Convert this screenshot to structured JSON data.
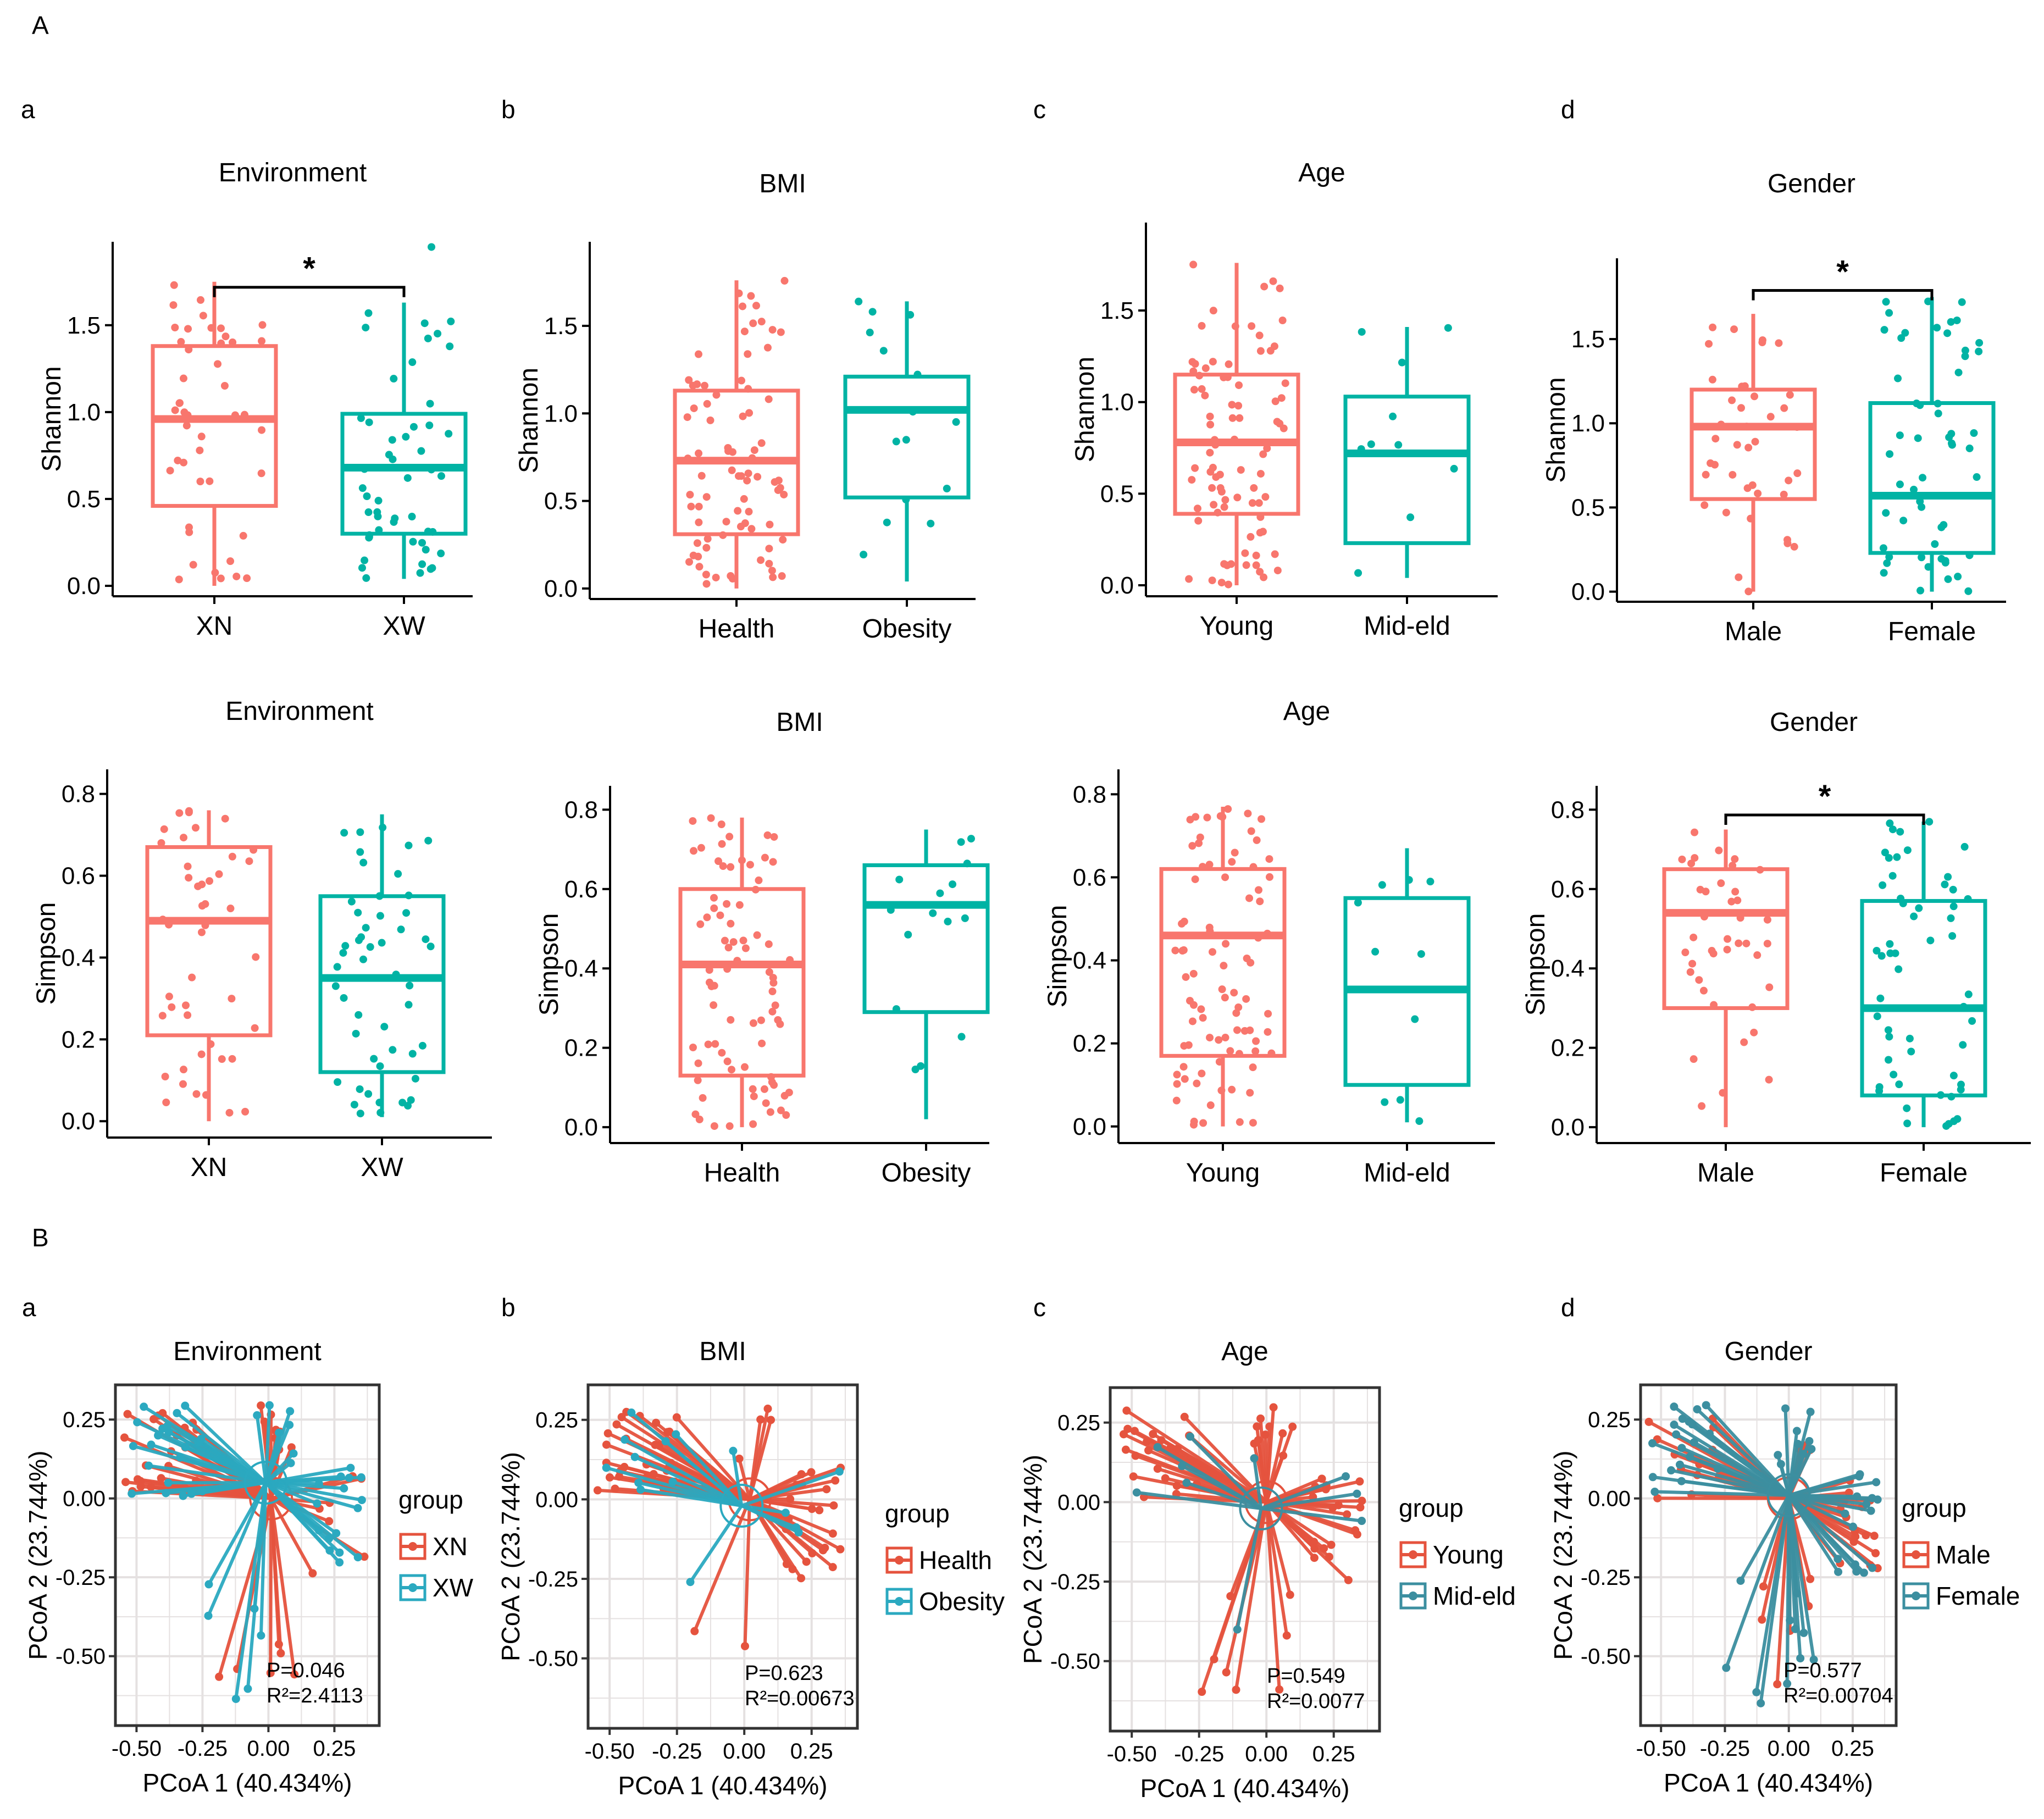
{
  "figure": {
    "panel_A_label": "A",
    "panel_B_label": "B"
  },
  "colors": {
    "salmon": "#F8766D",
    "teal": "#00B3A4",
    "pcoa_red": "#E5533E",
    "pcoa_blue": "#2BA9C0",
    "pcoa_blue2": "#3C8FA0"
  },
  "chart_data": [
    {
      "id": "Aa1",
      "type": "box",
      "panel_label": "a",
      "title": "Environment",
      "ylabel": "Shannon",
      "ylim": [
        -0.06,
        1.98
      ],
      "yticks": [
        0.0,
        0.5,
        1.0,
        1.5
      ],
      "ytick_labels": [
        "0.0",
        "0.5",
        "1.0",
        "1.5"
      ],
      "categories": [
        "XN",
        "XW"
      ],
      "stats": [
        {
          "q1": 0.46,
          "median": 0.96,
          "q3": 1.38,
          "lo": 0.0,
          "hi": 1.75
        },
        {
          "q1": 0.3,
          "median": 0.68,
          "q3": 0.99,
          "lo": 0.04,
          "hi": 1.63
        }
      ],
      "n_points": [
        45,
        50
      ],
      "outliers": [
        [],
        [
          1.95
        ]
      ],
      "significance": "*"
    },
    {
      "id": "Ab1",
      "type": "box",
      "panel_label": "b",
      "title": "BMI",
      "ylabel": "Shannon",
      "ylim": [
        -0.06,
        1.98
      ],
      "yticks": [
        0.0,
        0.5,
        1.0,
        1.5
      ],
      "ytick_labels": [
        "0.0",
        "0.5",
        "1.0",
        "1.5"
      ],
      "categories": [
        "Health",
        "Obesity"
      ],
      "stats": [
        {
          "q1": 0.31,
          "median": 0.73,
          "q3": 1.13,
          "lo": 0.0,
          "hi": 1.76
        },
        {
          "q1": 0.52,
          "median": 1.02,
          "q3": 1.21,
          "lo": 0.04,
          "hi": 1.64
        }
      ],
      "n_points": [
        80,
        15
      ],
      "outliers": [
        [],
        []
      ],
      "significance": ""
    },
    {
      "id": "Ac1",
      "type": "box",
      "panel_label": "c",
      "title": "Age",
      "ylabel": "Shannon",
      "ylim": [
        -0.06,
        1.98
      ],
      "yticks": [
        0.0,
        0.5,
        1.0,
        1.5
      ],
      "ytick_labels": [
        "0.0",
        "0.5",
        "1.0",
        "1.5"
      ],
      "categories": [
        "Young",
        "Mid-eld"
      ],
      "stats": [
        {
          "q1": 0.39,
          "median": 0.78,
          "q3": 1.15,
          "lo": 0.0,
          "hi": 1.76
        },
        {
          "q1": 0.23,
          "median": 0.72,
          "q3": 1.03,
          "lo": 0.04,
          "hi": 1.41
        }
      ],
      "n_points": [
        85,
        10
      ],
      "outliers": [
        [],
        []
      ],
      "significance": ""
    },
    {
      "id": "Ad1",
      "type": "box",
      "panel_label": "d",
      "title": "Gender",
      "ylabel": "Shannon",
      "ylim": [
        -0.06,
        1.98
      ],
      "yticks": [
        0.0,
        0.5,
        1.0,
        1.5
      ],
      "ytick_labels": [
        "0.0",
        "0.5",
        "1.0",
        "1.5"
      ],
      "categories": [
        "Male",
        "Female"
      ],
      "stats": [
        {
          "q1": 0.55,
          "median": 0.98,
          "q3": 1.2,
          "lo": 0.0,
          "hi": 1.65
        },
        {
          "q1": 0.23,
          "median": 0.57,
          "q3": 1.12,
          "lo": 0.0,
          "hi": 1.75
        }
      ],
      "n_points": [
        40,
        55
      ],
      "outliers": [
        [],
        []
      ],
      "significance": "*"
    },
    {
      "id": "Aa2",
      "type": "box",
      "panel_label": "",
      "title": "Environment",
      "ylabel": "Simpson",
      "ylim": [
        -0.04,
        0.86
      ],
      "yticks": [
        0.0,
        0.2,
        0.4,
        0.6,
        0.8
      ],
      "ytick_labels": [
        "0.0",
        "0.2",
        "0.4",
        "0.6",
        "0.8"
      ],
      "categories": [
        "XN",
        "XW"
      ],
      "stats": [
        {
          "q1": 0.21,
          "median": 0.49,
          "q3": 0.67,
          "lo": 0.0,
          "hi": 0.76
        },
        {
          "q1": 0.12,
          "median": 0.35,
          "q3": 0.55,
          "lo": 0.01,
          "hi": 0.75
        }
      ],
      "n_points": [
        45,
        50
      ],
      "outliers": [
        [],
        []
      ],
      "significance": ""
    },
    {
      "id": "Ab2",
      "type": "box",
      "panel_label": "",
      "title": "BMI",
      "ylabel": "Simpson",
      "ylim": [
        -0.04,
        0.86
      ],
      "yticks": [
        0.0,
        0.2,
        0.4,
        0.6,
        0.8
      ],
      "ytick_labels": [
        "0.0",
        "0.2",
        "0.4",
        "0.6",
        "0.8"
      ],
      "categories": [
        "Health",
        "Obesity"
      ],
      "stats": [
        {
          "q1": 0.13,
          "median": 0.41,
          "q3": 0.6,
          "lo": 0.0,
          "hi": 0.78
        },
        {
          "q1": 0.29,
          "median": 0.56,
          "q3": 0.66,
          "lo": 0.02,
          "hi": 0.75
        }
      ],
      "n_points": [
        80,
        15
      ],
      "outliers": [
        [],
        []
      ],
      "significance": ""
    },
    {
      "id": "Ac2",
      "type": "box",
      "panel_label": "",
      "title": "Age",
      "ylabel": "Simpson",
      "ylim": [
        -0.04,
        0.86
      ],
      "yticks": [
        0.0,
        0.2,
        0.4,
        0.6,
        0.8
      ],
      "ytick_labels": [
        "0.0",
        "0.2",
        "0.4",
        "0.6",
        "0.8"
      ],
      "categories": [
        "Young",
        "Mid-eld"
      ],
      "stats": [
        {
          "q1": 0.17,
          "median": 0.46,
          "q3": 0.62,
          "lo": 0.0,
          "hi": 0.77
        },
        {
          "q1": 0.1,
          "median": 0.33,
          "q3": 0.55,
          "lo": 0.01,
          "hi": 0.67
        }
      ],
      "n_points": [
        85,
        10
      ],
      "outliers": [
        [],
        []
      ],
      "significance": ""
    },
    {
      "id": "Ad2",
      "type": "box",
      "panel_label": "",
      "title": "Gender",
      "ylabel": "Simpson",
      "ylim": [
        -0.04,
        0.86
      ],
      "yticks": [
        0.0,
        0.2,
        0.4,
        0.6,
        0.8
      ],
      "ytick_labels": [
        "0.0",
        "0.2",
        "0.4",
        "0.6",
        "0.8"
      ],
      "categories": [
        "Male",
        "Female"
      ],
      "stats": [
        {
          "q1": 0.3,
          "median": 0.54,
          "q3": 0.65,
          "lo": 0.0,
          "hi": 0.75
        },
        {
          "q1": 0.08,
          "median": 0.3,
          "q3": 0.57,
          "lo": 0.0,
          "hi": 0.77
        }
      ],
      "n_points": [
        40,
        55
      ],
      "outliers": [
        [],
        []
      ],
      "significance": "*"
    },
    {
      "id": "Ba",
      "type": "scatter",
      "subtype": "pcoa-spider",
      "panel_label": "a",
      "title": "Environment",
      "xlabel": "PCoA 1 (40.434%)",
      "ylabel": "PCoA 2 (23.744%)",
      "xlim": [
        -0.58,
        0.42
      ],
      "ylim": [
        -0.72,
        0.36
      ],
      "xticks": [
        -0.5,
        -0.25,
        0.0,
        0.25
      ],
      "xtick_labels": [
        "-0.50",
        "-0.25",
        "0.00",
        "0.25"
      ],
      "yticks": [
        -0.5,
        -0.25,
        0.0,
        0.25
      ],
      "ytick_labels": [
        "-0.50",
        "-0.25",
        "0.00",
        "0.25"
      ],
      "legend_title": "group",
      "groups": [
        "XN",
        "XW"
      ],
      "group_colors": [
        "#E5533E",
        "#2BA9C0"
      ],
      "group_sizes": [
        45,
        50
      ],
      "centroids": [
        [
          0.01,
          0.0
        ],
        [
          -0.01,
          0.05
        ]
      ],
      "stats": [
        "P=0.046",
        "R²=2.4113"
      ]
    },
    {
      "id": "Bb",
      "type": "scatter",
      "subtype": "pcoa-spider",
      "panel_label": "b",
      "title": "BMI",
      "xlabel": "PCoA 1 (40.434%)",
      "ylabel": "PCoA 2 (23.744%)",
      "xlim": [
        -0.58,
        0.42
      ],
      "ylim": [
        -0.72,
        0.36
      ],
      "xticks": [
        -0.5,
        -0.25,
        0.0,
        0.25
      ],
      "xtick_labels": [
        "-0.50",
        "-0.25",
        "0.00",
        "0.25"
      ],
      "yticks": [
        -0.25,
        0.0,
        0.25
      ],
      "ytick_labels": [
        "-0.25",
        "0.00",
        "0.25"
      ],
      "extra_ytick_labels": [
        {
          "value": -0.5,
          "label": "-0.50"
        }
      ],
      "legend_title": "group",
      "groups": [
        "Health",
        "Obesity"
      ],
      "group_colors": [
        "#E5533E",
        "#2BA9C0"
      ],
      "group_sizes": [
        80,
        15
      ],
      "centroids": [
        [
          0.02,
          0.0
        ],
        [
          -0.01,
          -0.02
        ]
      ],
      "stats": [
        "P=0.623",
        "R²=0.00673"
      ]
    },
    {
      "id": "Bc",
      "type": "scatter",
      "subtype": "pcoa-spider",
      "panel_label": "c",
      "title": "Age",
      "xlabel": "PCoA 1 (40.434%)",
      "ylabel": "PCoA 2 (23.744%)",
      "xlim": [
        -0.58,
        0.42
      ],
      "ylim": [
        -0.72,
        0.36
      ],
      "xticks": [
        -0.5,
        -0.25,
        0.0,
        0.25
      ],
      "xtick_labels": [
        "-0.50",
        "-0.25",
        "0.00",
        "0.25"
      ],
      "yticks": [
        -0.5,
        -0.25,
        0.0,
        0.25
      ],
      "ytick_labels": [
        "-0.50",
        "-0.25",
        "0.00",
        "0.25"
      ],
      "legend_title": "group",
      "groups": [
        "Young",
        "Mid-eld"
      ],
      "group_colors": [
        "#E5533E",
        "#3C8FA0"
      ],
      "group_sizes": [
        85,
        10
      ],
      "centroids": [
        [
          0.0,
          0.0
        ],
        [
          -0.02,
          -0.02
        ]
      ],
      "stats": [
        "P=0.549",
        "R²=0.0077"
      ]
    },
    {
      "id": "Bd",
      "type": "scatter",
      "subtype": "pcoa-spider",
      "panel_label": "d",
      "title": "Gender",
      "xlabel": "PCoA 1 (40.434%)",
      "ylabel": "PCoA 2 (23.744%)",
      "xlim": [
        -0.58,
        0.42
      ],
      "ylim": [
        -0.72,
        0.36
      ],
      "xticks": [
        -0.5,
        -0.25,
        0.0,
        0.25
      ],
      "xtick_labels": [
        "-0.50",
        "-0.25",
        "0.00",
        "0.25"
      ],
      "yticks": [
        -0.5,
        -0.25,
        0.0,
        0.25
      ],
      "ytick_labels": [
        "-0.50",
        "-0.25",
        "0.00",
        "0.25"
      ],
      "legend_title": "group",
      "groups": [
        "Male",
        "Female"
      ],
      "group_colors": [
        "#E5533E",
        "#3C8FA0"
      ],
      "group_sizes": [
        40,
        55
      ],
      "centroids": [
        [
          0.0,
          0.0
        ],
        [
          0.0,
          0.01
        ]
      ],
      "stats": [
        "P=0.577",
        "R²=0.00704"
      ]
    }
  ]
}
